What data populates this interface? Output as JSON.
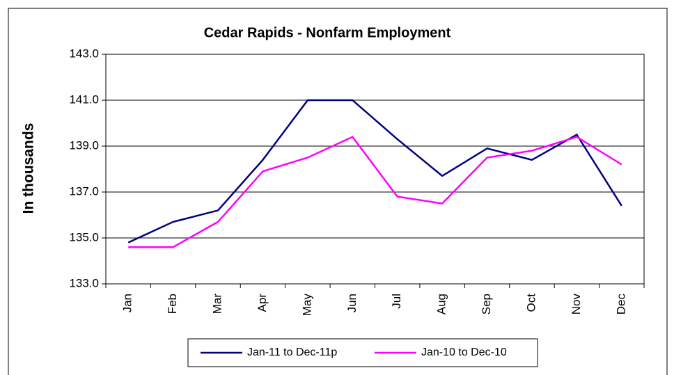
{
  "chart_data": {
    "type": "line",
    "title": "Cedar Rapids - Nonfarm Employment",
    "y_label": "In thousands",
    "categories": [
      "Jan",
      "Feb",
      "Mar",
      "Apr",
      "May",
      "Jun",
      "Jul",
      "Aug",
      "Sep",
      "Oct",
      "Nov",
      "Dec"
    ],
    "series": [
      {
        "name": "Jan-11 to Dec-11p",
        "color": "#000080",
        "values": [
          134.8,
          135.7,
          136.2,
          138.4,
          141.0,
          141.0,
          139.3,
          137.7,
          138.9,
          138.4,
          139.5,
          136.4
        ]
      },
      {
        "name": "Jan-10 to Dec-10",
        "color": "#ff00ff",
        "values": [
          134.6,
          134.6,
          135.7,
          137.9,
          138.5,
          139.4,
          136.8,
          136.5,
          138.5,
          138.8,
          139.4,
          138.2
        ]
      }
    ],
    "ylim": [
      133,
      143
    ],
    "yticks": [
      {
        "value": 133,
        "label": "133.0"
      },
      {
        "value": 135,
        "label": "135.0"
      },
      {
        "value": 137,
        "label": "137.0"
      },
      {
        "value": 139,
        "label": "139.0"
      },
      {
        "value": 141,
        "label": "141.0"
      },
      {
        "value": 143,
        "label": "143.0"
      }
    ],
    "grid": true,
    "legend": "bottom"
  }
}
